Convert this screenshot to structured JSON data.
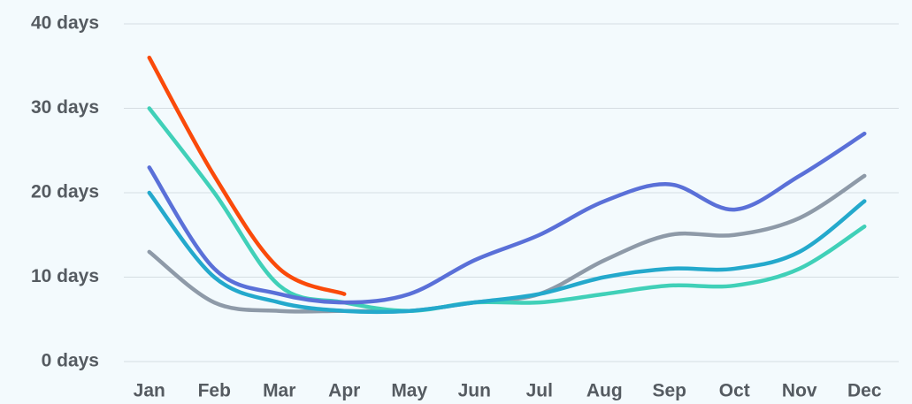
{
  "chart_data": {
    "type": "line",
    "categories": [
      "Jan",
      "Feb",
      "Mar",
      "Apr",
      "May",
      "Jun",
      "Jul",
      "Aug",
      "Sep",
      "Oct",
      "Nov",
      "Dec"
    ],
    "series": [
      {
        "color": "#8e9aa8",
        "values": [
          13,
          7,
          6,
          6,
          6,
          7,
          8,
          12,
          15,
          15,
          17,
          22
        ]
      },
      {
        "color": "#40d0b8",
        "values": [
          30,
          20,
          9,
          7,
          6,
          7,
          7,
          8,
          9,
          9,
          11,
          16
        ]
      },
      {
        "color": "#24a9cc",
        "values": [
          20,
          10,
          7,
          6,
          6,
          7,
          8,
          10,
          11,
          11,
          13,
          19
        ]
      },
      {
        "color": "#5a70d8",
        "values": [
          23,
          11,
          8,
          7,
          8,
          12,
          15,
          19,
          21,
          18,
          22,
          27
        ]
      },
      {
        "color": "#fa4a0a",
        "values": [
          36,
          22,
          11,
          8,
          null,
          null,
          null,
          null,
          null,
          null,
          null,
          null
        ]
      }
    ],
    "ylim": [
      0,
      40
    ],
    "yticks": [
      {
        "value": 0,
        "label": "0 days"
      },
      {
        "value": 10,
        "label": "10 days"
      },
      {
        "value": 20,
        "label": "20 days"
      },
      {
        "value": 30,
        "label": "30 days"
      },
      {
        "value": 40,
        "label": "40 days"
      }
    ],
    "grid": true,
    "smooth": true
  }
}
